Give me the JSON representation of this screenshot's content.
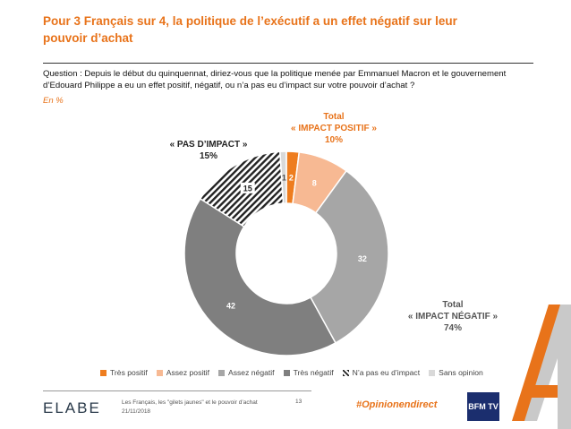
{
  "title": "Pour 3 Français sur 4, la politique de l’exécutif a un effet négatif sur leur pouvoir d’achat",
  "question": "Question : Depuis le début du quinquennat, diriez-vous que la politique menée par Emmanuel Macron et le gouvernement d’Edouard Philippe a eu un effet positif, négatif, ou n’a pas eu d’impact sur votre pouvoir d’achat ?",
  "unit": "En %",
  "callouts": {
    "positif": {
      "line1": "Total",
      "line2": "« IMPACT POSITIF »",
      "value": "10%"
    },
    "pas_impact": {
      "line1": "« PAS D’IMPACT »",
      "value": "15%"
    },
    "negatif": {
      "line1": "Total",
      "line2": "« IMPACT NÉGATIF »",
      "value": "74%"
    }
  },
  "chart_data": {
    "type": "pie",
    "subtype": "donut",
    "categories": [
      "Très positif",
      "Assez positif",
      "Assez négatif",
      "Très négatif",
      "N’a pas eu d’impact",
      "Sans opinion"
    ],
    "values": [
      2,
      8,
      32,
      42,
      15,
      1
    ],
    "colors": [
      "#ee7d1f",
      "#f7b993",
      "#a6a6a6",
      "#7f7f7f",
      "hatch",
      "#d9d9d9"
    ],
    "labels": [
      "2",
      "8",
      "32",
      "42",
      "15",
      "1"
    ],
    "legend_position": "bottom"
  },
  "footer": {
    "logo": "ELABE",
    "source_line1": "Les Français, les \"gilets jaunes\" et le pouvoir d’achat",
    "source_line2": "21/11/2018",
    "page": "13",
    "hashtag": "#Opinionendirect",
    "partner": "BFM TV"
  }
}
